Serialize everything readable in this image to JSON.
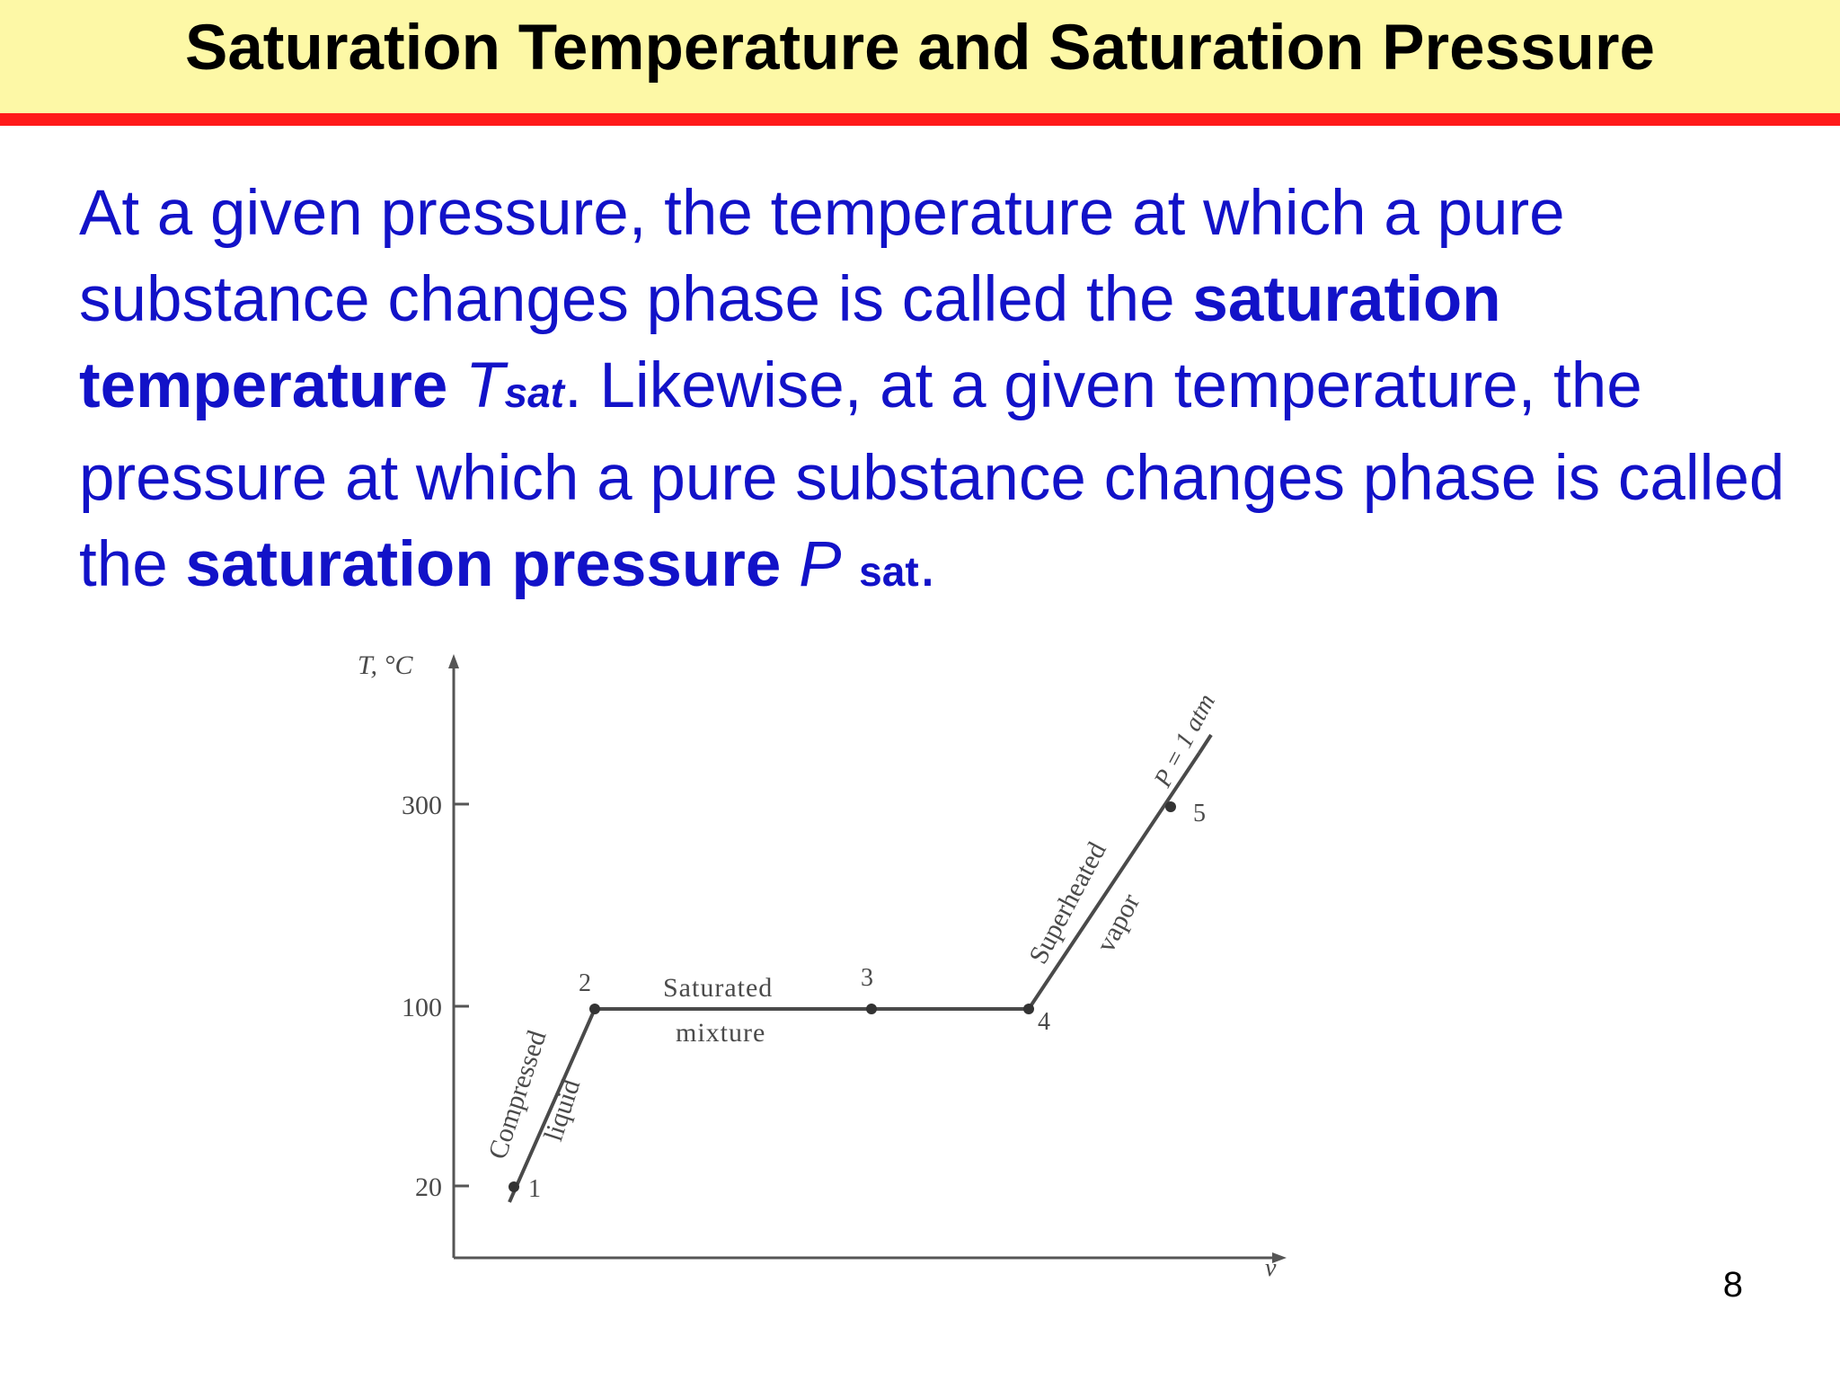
{
  "title": "Saturation Temperature and Saturation Pressure",
  "paragraph": {
    "p1": "At a given pressure, the temperature at which a pure substance changes phase is called the ",
    "b1": "saturation temperature",
    "i1": "T",
    "s1": "sat",
    "p2": ". Likewise, at a given temperature, the pressure at which a pure substance changes phase is called the ",
    "b2": "saturation pressure",
    "i2": "P",
    "s2": "sat",
    "p3": "."
  },
  "diagram": {
    "y_axis_label": "T, °C",
    "x_axis_label": "v",
    "y_ticks": [
      "300",
      "100",
      "20"
    ],
    "points": [
      "1",
      "2",
      "3",
      "4",
      "5"
    ],
    "region_labels": {
      "compressed_1": "Compressed",
      "compressed_2": "liquid",
      "saturated_1": "Saturated",
      "saturated_2": "mixture",
      "superheated_1": "Superheated",
      "superheated_2": "vapor",
      "pressure": "P = 1 atm"
    },
    "colors": {
      "line": "#4a4a4a",
      "axis": "#555555"
    }
  },
  "page_number": "8"
}
